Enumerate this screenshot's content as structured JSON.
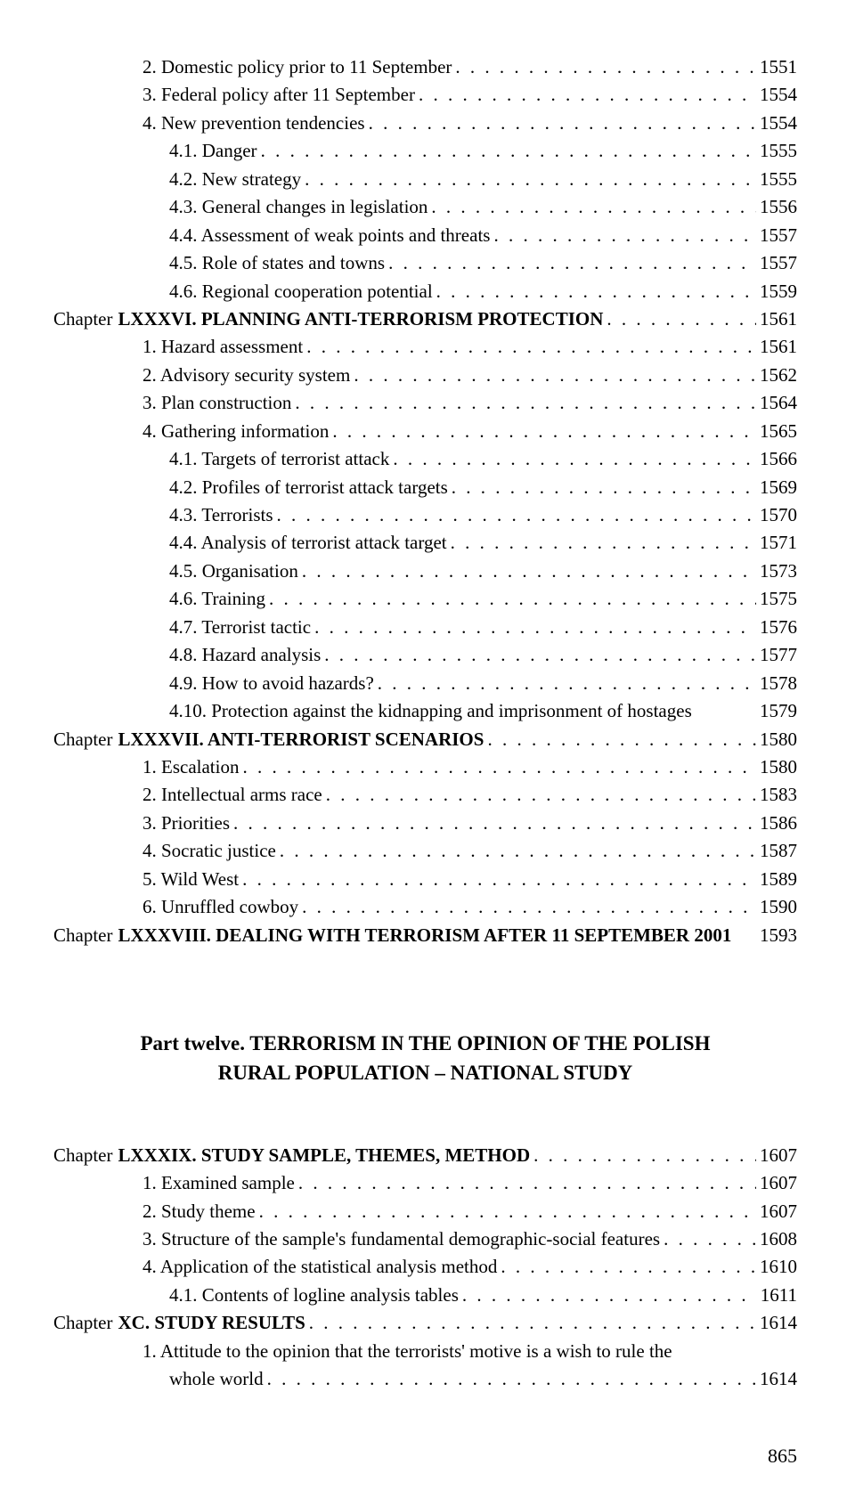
{
  "entries_top": [
    {
      "indent": 1,
      "prefix": "",
      "title": "2. Domestic policy prior to 11 September",
      "page": "1551",
      "bold": false
    },
    {
      "indent": 1,
      "prefix": "",
      "title": "3. Federal policy after 11 September",
      "page": "1554",
      "bold": false
    },
    {
      "indent": 1,
      "prefix": "",
      "title": "4. New prevention tendencies",
      "page": "1554",
      "bold": false
    },
    {
      "indent": 2,
      "prefix": "",
      "title": "4.1. Danger",
      "page": "1555",
      "bold": false
    },
    {
      "indent": 2,
      "prefix": "",
      "title": "4.2. New strategy",
      "page": "1555",
      "bold": false
    },
    {
      "indent": 2,
      "prefix": "",
      "title": "4.3. General changes in legislation",
      "page": "1556",
      "bold": false
    },
    {
      "indent": 2,
      "prefix": "",
      "title": "4.4. Assessment of weak points and threats",
      "page": "1557",
      "bold": false
    },
    {
      "indent": 2,
      "prefix": "",
      "title": "4.5. Role of states and towns",
      "page": "1557",
      "bold": false
    },
    {
      "indent": 2,
      "prefix": "",
      "title": "4.6. Regional cooperation potential",
      "page": "1559",
      "bold": false
    },
    {
      "indent": 0,
      "prefix": "Chapter ",
      "title": "LXXXVI. PLANNING ANTI-TERRORISM PROTECTION",
      "page": "1561",
      "bold": true
    },
    {
      "indent": 1,
      "prefix": "",
      "title": "1. Hazard assessment",
      "page": "1561",
      "bold": false
    },
    {
      "indent": 1,
      "prefix": "",
      "title": "2. Advisory security system",
      "page": "1562",
      "bold": false
    },
    {
      "indent": 1,
      "prefix": "",
      "title": "3. Plan construction",
      "page": "1564",
      "bold": false
    },
    {
      "indent": 1,
      "prefix": "",
      "title": "4. Gathering information",
      "page": "1565",
      "bold": false
    },
    {
      "indent": 2,
      "prefix": "",
      "title": "4.1. Targets of terrorist attack",
      "page": "1566",
      "bold": false
    },
    {
      "indent": 2,
      "prefix": "",
      "title": "4.2. Profiles of terrorist attack targets",
      "page": "1569",
      "bold": false
    },
    {
      "indent": 2,
      "prefix": "",
      "title": "4.3. Terrorists",
      "page": "1570",
      "bold": false
    },
    {
      "indent": 2,
      "prefix": "",
      "title": "4.4. Analysis of terrorist attack target",
      "page": "1571",
      "bold": false
    },
    {
      "indent": 2,
      "prefix": "",
      "title": "4.5. Organisation",
      "page": "1573",
      "bold": false
    },
    {
      "indent": 2,
      "prefix": "",
      "title": "4.6. Training",
      "page": "1575",
      "bold": false
    },
    {
      "indent": 2,
      "prefix": "",
      "title": "4.7. Terrorist tactic",
      "page": "1576",
      "bold": false
    },
    {
      "indent": 2,
      "prefix": "",
      "title": "4.8. Hazard analysis",
      "page": "1577",
      "bold": false
    },
    {
      "indent": 2,
      "prefix": "",
      "title": "4.9. How to avoid hazards?",
      "page": "1578",
      "bold": false
    },
    {
      "indent": 2,
      "prefix": "",
      "title": "4.10. Protection against the kidnapping and imprisonment of hostages",
      "page": "1579",
      "bold": false,
      "nodots": true
    },
    {
      "indent": 0,
      "prefix": "Chapter ",
      "title": "LXXXVII. ANTI-TERRORIST SCENARIOS",
      "page": "1580",
      "bold": true
    },
    {
      "indent": 1,
      "prefix": "",
      "title": "1. Escalation",
      "page": "1580",
      "bold": false
    },
    {
      "indent": 1,
      "prefix": "",
      "title": "2. Intellectual arms race",
      "page": "1583",
      "bold": false
    },
    {
      "indent": 1,
      "prefix": "",
      "title": "3. Priorities",
      "page": "1586",
      "bold": false
    },
    {
      "indent": 1,
      "prefix": "",
      "title": "4. Socratic justice",
      "page": "1587",
      "bold": false
    },
    {
      "indent": 1,
      "prefix": "",
      "title": "5. Wild West",
      "page": "1589",
      "bold": false
    },
    {
      "indent": 1,
      "prefix": "",
      "title": "6. Unruffled cowboy",
      "page": "1590",
      "bold": false
    },
    {
      "indent": 0,
      "prefix": "Chapter ",
      "title": "LXXXVIII. DEALING WITH TERRORISM AFTER 11 SEPTEMBER 2001",
      "page": "1593",
      "bold": true,
      "nodots": true
    }
  ],
  "part_heading_line1": "Part twelve. TERRORISM IN THE OPINION OF THE POLISH",
  "part_heading_line2": "RURAL POPULATION – NATIONAL STUDY",
  "entries_bottom": [
    {
      "indent": 0,
      "prefix": "Chapter ",
      "title": "LXXXIX. STUDY SAMPLE, THEMES, METHOD",
      "page": "1607",
      "bold": true
    },
    {
      "indent": 1,
      "prefix": "",
      "title": "1. Examined sample",
      "page": "1607",
      "bold": false
    },
    {
      "indent": 1,
      "prefix": "",
      "title": "2. Study theme",
      "page": "1607",
      "bold": false
    },
    {
      "indent": 1,
      "prefix": "",
      "title": "3. Structure of the sample's fundamental demographic-social features",
      "page": "1608",
      "bold": false
    },
    {
      "indent": 1,
      "prefix": "",
      "title": "4. Application of the statistical analysis method",
      "page": "1610",
      "bold": false
    },
    {
      "indent": 2,
      "prefix": "",
      "title": "4.1. Contents of logline analysis tables",
      "page": "1611",
      "bold": false
    },
    {
      "indent": 0,
      "prefix": "Chapter ",
      "title": "XC. STUDY RESULTS",
      "page": "1614",
      "bold": true
    }
  ],
  "wrapped_entry": {
    "line1": "1. Attitude to the opinion that the terrorists' motive is a wish to rule the",
    "line2": "whole world",
    "page": "1614"
  },
  "page_number": "865",
  "dots": ". . . . . . . . . . . . . . . . . . . . . . . . . . . . . . . . . . . . . . . . . . . . . . . . . . . . . . . . . . . . . ."
}
